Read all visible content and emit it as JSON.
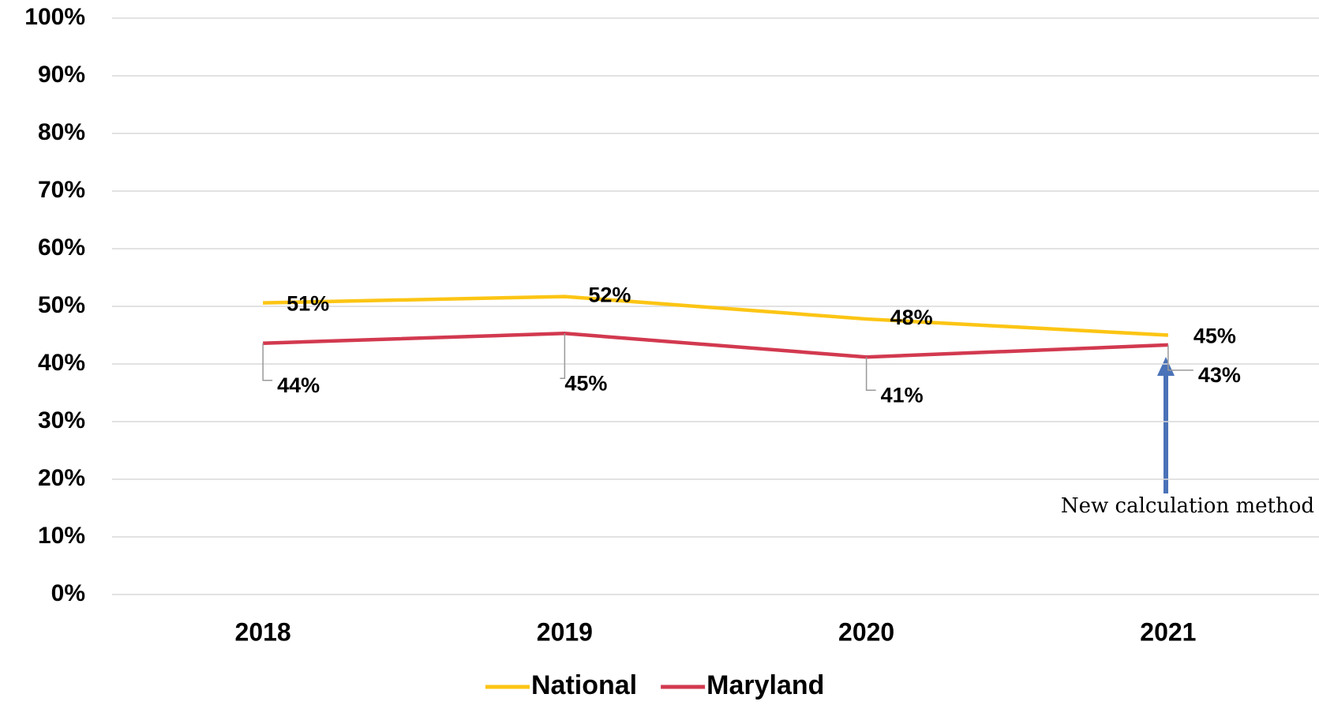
{
  "chart_data": {
    "type": "line",
    "categories": [
      "2018",
      "2019",
      "2020",
      "2021"
    ],
    "series": [
      {
        "name": "National",
        "color": "#fcc514",
        "values": [
          50.6,
          51.7,
          47.8,
          45.0
        ],
        "value_labels": [
          "51%",
          "52%",
          "48%",
          "45%"
        ]
      },
      {
        "name": "Maryland",
        "color": "#d2394f",
        "values": [
          43.6,
          45.3,
          41.2,
          43.3
        ],
        "value_labels": [
          "44%",
          "45%",
          "41%",
          "43%"
        ]
      }
    ],
    "ylim": [
      0,
      100
    ],
    "yticks": [
      {
        "value": 0,
        "label": "0%"
      },
      {
        "value": 10,
        "label": "10%"
      },
      {
        "value": 20,
        "label": "20%"
      },
      {
        "value": 30,
        "label": "30%"
      },
      {
        "value": 40,
        "label": "40%"
      },
      {
        "value": 50,
        "label": "50%"
      },
      {
        "value": 60,
        "label": "60%"
      },
      {
        "value": 70,
        "label": "70%"
      },
      {
        "value": 80,
        "label": "80%"
      },
      {
        "value": 90,
        "label": "90%"
      },
      {
        "value": 100,
        "label": "100%"
      }
    ],
    "grid": true,
    "legend": "bottom",
    "annotation": "New calculation method"
  }
}
